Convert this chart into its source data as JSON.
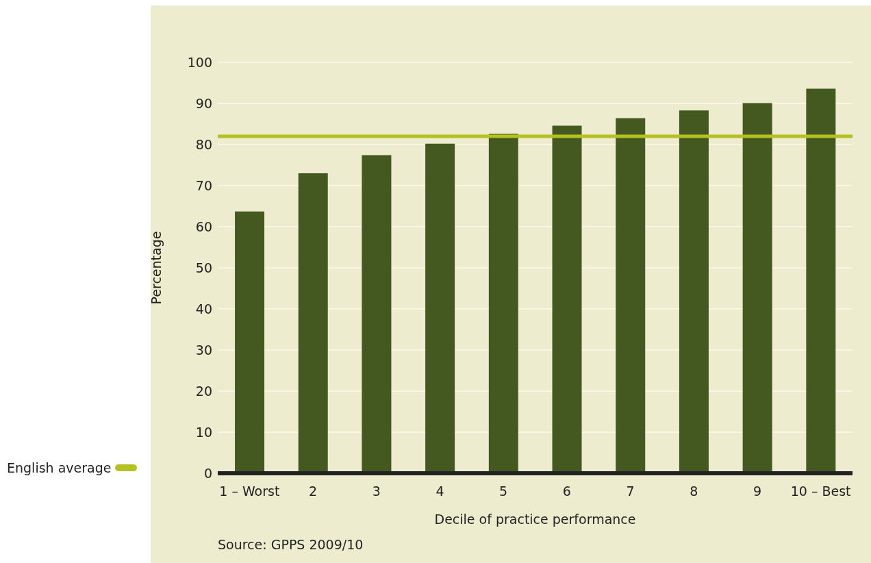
{
  "chart_data": {
    "type": "bar",
    "xlabel": "Decile of practice performance",
    "ylabel": "Percentage",
    "categories": [
      "1 – Worst",
      "2",
      "3",
      "4",
      "5",
      "6",
      "7",
      "8",
      "9",
      "10 – Best"
    ],
    "values": [
      63.7,
      73.0,
      77.4,
      80.2,
      82.6,
      84.6,
      86.4,
      88.3,
      90.1,
      93.6
    ],
    "color": "#44591f",
    "ylim": [
      0,
      100
    ],
    "yticks": [
      0,
      10,
      20,
      30,
      40,
      50,
      60,
      70,
      80,
      90,
      100
    ],
    "grid": "y",
    "ref_lines": [
      {
        "axis": "y",
        "value": 82,
        "label": "English average",
        "color": "#b5c11f"
      }
    ],
    "legend": "left",
    "annotations": [
      "Source: GPPS 2009/10"
    ]
  }
}
